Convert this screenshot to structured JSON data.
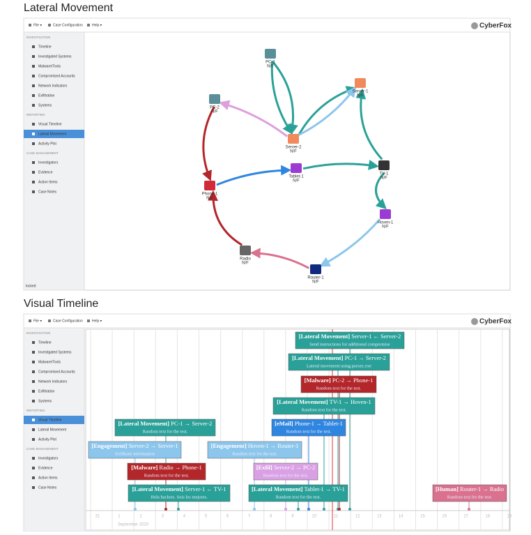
{
  "sections": [
    {
      "heading": "Lateral Movement"
    },
    {
      "heading": "Visual Timeline"
    }
  ],
  "app": {
    "menu": [
      "File ▾",
      "Case Configuration",
      "Help ▾"
    ],
    "logo": "CyberFox",
    "sidebar": [
      {
        "section": "INVESTIGATION",
        "items": [
          "Timeline",
          "Investigated Systems",
          "Malware/Tools",
          "Compromised Accounts",
          "Network Indicators",
          "Exfiltration",
          "Systems"
        ]
      },
      {
        "section": "REPORTING",
        "items": [
          "Visual Timeline",
          "Lateral Movement",
          "Activity Plot"
        ]
      },
      {
        "section": "CASE MANAGEMENT",
        "items": [
          "Investigators",
          "Evidence",
          "Action Items",
          "Case Notes"
        ]
      }
    ],
    "footer": "locked"
  },
  "graph": {
    "nodes": [
      {
        "label": "PC-1",
        "status": "N/F"
      },
      {
        "label": "Server-1",
        "status": "N/F"
      },
      {
        "label": "PC-2",
        "status": "N/F"
      },
      {
        "label": "Server-2",
        "status": "N/F"
      },
      {
        "label": "Tablet-1",
        "status": "N/F"
      },
      {
        "label": "TV-1",
        "status": "N/F"
      },
      {
        "label": "Phone-1",
        "status": "N/F"
      },
      {
        "label": "Hoven-1",
        "status": "N/F"
      },
      {
        "label": "Radio",
        "status": "N/F"
      },
      {
        "label": "Router-1",
        "status": "N/F"
      }
    ]
  },
  "timeline": {
    "ticks": [
      "31",
      "1",
      "2",
      "3",
      "4",
      "5",
      "6",
      "7",
      "8",
      "9",
      "10",
      "11",
      "12",
      "13",
      "14",
      "15",
      "16",
      "17",
      "18",
      "19"
    ],
    "month": "September 2020",
    "events": [
      {
        "category": "[Lateral Movement]",
        "route": "Server-1 ← Server-2",
        "text": "Send instructions for additional compromise",
        "color": "#2aa198"
      },
      {
        "category": "[Lateral Movement]",
        "route": "PC-1 → Server-2",
        "text": "Lateral movement using psexec.exe",
        "color": "#2aa198"
      },
      {
        "category": "[Malware]",
        "route": "PC-2 → Phone-1",
        "text": "Random text for the test.",
        "color": "#b3262a"
      },
      {
        "category": "[Lateral Movement]",
        "route": "TV-1 → Hoven-1",
        "text": "Random text for the test.",
        "color": "#2aa198"
      },
      {
        "category": "[Lateral Movement]",
        "route": "PC-1 → Server-2",
        "text": "Random text for the test.",
        "color": "#2aa198"
      },
      {
        "category": "[eMail]",
        "route": "Phone-1 → Tablet-1",
        "text": "Random text for the test.",
        "color": "#2f86e0"
      },
      {
        "category": "[Engagement]",
        "route": "Server-2 → Server-1",
        "text": "Exfiltrate information",
        "color": "#8cc6ec"
      },
      {
        "category": "[Engagement]",
        "route": "Hoven-1 → Router-1",
        "text": "Random text for the test.",
        "color": "#8cc6ec"
      },
      {
        "category": "[Malware]",
        "route": "Radio → Phone-1",
        "text": "Random text for the test.",
        "color": "#b3262a"
      },
      {
        "category": "[Exfil]",
        "route": "Server-2 → PC-2",
        "text": "Random text for the test.",
        "color": "#d9a0e4"
      },
      {
        "category": "[Lateral Movement]",
        "route": "Server-1 ← TV-1",
        "text": "Hola hackers. Sois los mejores.",
        "color": "#2aa198"
      },
      {
        "category": "[Lateral Movement]",
        "route": "Tablet-1 → TV-1",
        "text": "Random text for the test.",
        "color": "#2aa198"
      },
      {
        "category": "[Human]",
        "route": "Router-1 → Radio",
        "text": "Random text for the test.",
        "color": "#d9718f"
      }
    ]
  }
}
